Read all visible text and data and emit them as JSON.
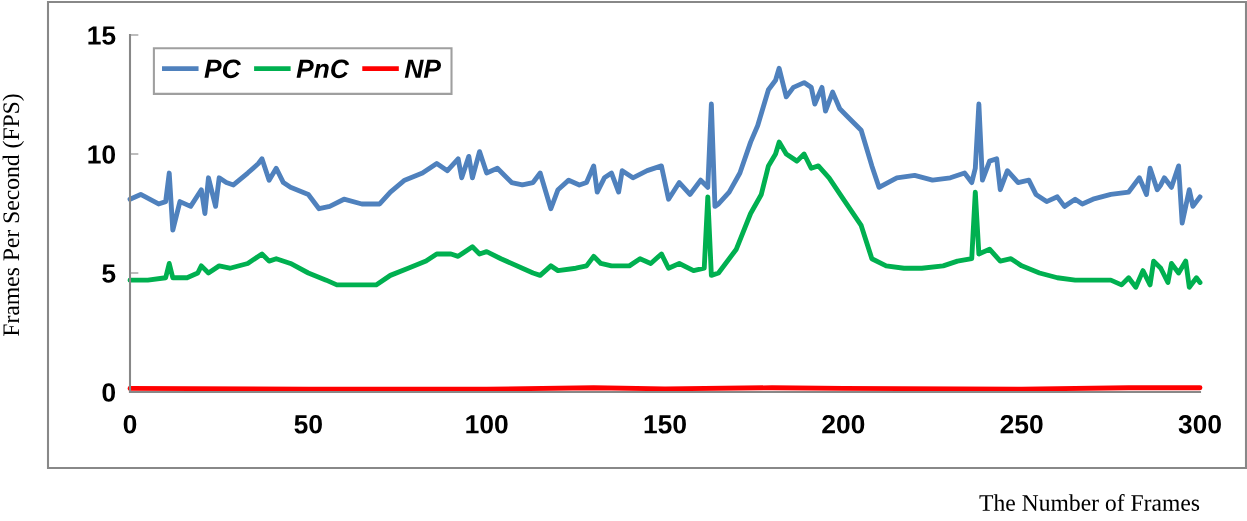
{
  "chart_data": {
    "type": "line",
    "xlabel": "The Number of Frames",
    "ylabel": "Frames Per Second (FPS)",
    "xlim": [
      0,
      300
    ],
    "xticks": [
      0,
      50,
      100,
      150,
      200,
      250,
      300
    ],
    "ylim": [
      0,
      15
    ],
    "yticks": [
      0,
      5,
      10,
      15
    ],
    "grid": false,
    "legend": "top left",
    "marker": "none",
    "line_style": "solid",
    "series": [
      {
        "name": "PC",
        "color": "#4f81bd",
        "x": [
          0,
          3,
          8,
          10,
          11,
          12,
          14,
          17,
          20,
          21,
          22,
          24,
          25,
          27,
          29,
          33,
          36,
          37,
          39,
          41,
          43,
          45,
          50,
          53,
          56,
          60,
          65,
          70,
          73,
          77,
          82,
          86,
          89,
          92,
          93,
          95,
          96,
          98,
          100,
          103,
          107,
          110,
          113,
          115,
          118,
          120,
          123,
          126,
          128,
          130,
          131,
          133,
          135,
          137,
          138,
          141,
          145,
          149,
          151,
          154,
          157,
          160,
          162,
          163,
          164,
          165,
          168,
          171,
          174,
          176,
          179,
          181,
          182,
          184,
          186,
          189,
          191,
          192,
          194,
          195,
          197,
          199,
          201,
          205,
          208,
          210,
          215,
          220,
          225,
          230,
          234,
          236,
          237,
          238,
          239,
          241,
          243,
          244,
          246,
          249,
          252,
          254,
          257,
          260,
          262,
          265,
          267,
          270,
          275,
          280,
          283,
          285,
          286,
          288,
          289,
          290,
          292,
          294,
          295,
          297,
          298,
          300
        ],
        "values": [
          8.1,
          8.3,
          7.9,
          8.0,
          9.2,
          6.8,
          8.0,
          7.8,
          8.5,
          7.5,
          9.0,
          7.8,
          9.0,
          8.8,
          8.7,
          9.2,
          9.6,
          9.8,
          8.9,
          9.4,
          8.8,
          8.6,
          8.3,
          7.7,
          7.8,
          8.1,
          7.9,
          7.9,
          8.4,
          8.9,
          9.2,
          9.6,
          9.3,
          9.8,
          9.0,
          9.9,
          9.0,
          10.1,
          9.2,
          9.4,
          8.8,
          8.7,
          8.8,
          9.2,
          7.7,
          8.5,
          8.9,
          8.7,
          8.8,
          9.5,
          8.4,
          9.0,
          9.2,
          8.4,
          9.3,
          9.0,
          9.3,
          9.5,
          8.1,
          8.8,
          8.3,
          8.9,
          8.6,
          12.1,
          7.8,
          7.9,
          8.4,
          9.2,
          10.5,
          11.2,
          12.7,
          13.1,
          13.6,
          12.4,
          12.8,
          13.0,
          12.8,
          12.1,
          12.8,
          11.8,
          12.6,
          11.9,
          11.6,
          11.0,
          9.5,
          8.6,
          9.0,
          9.1,
          8.9,
          9.0,
          9.2,
          8.8,
          9.4,
          12.1,
          8.9,
          9.7,
          9.8,
          8.5,
          9.3,
          8.8,
          8.9,
          8.3,
          8.0,
          8.2,
          7.8,
          8.1,
          7.9,
          8.1,
          8.3,
          8.4,
          9.0,
          8.3,
          9.4,
          8.5,
          8.7,
          9.0,
          8.6,
          9.5,
          7.1,
          8.5,
          7.8,
          8.2
        ]
      },
      {
        "name": "PnC",
        "color": "#00b050",
        "x": [
          0,
          5,
          10,
          11,
          12,
          16,
          19,
          20,
          22,
          25,
          28,
          33,
          37,
          39,
          41,
          45,
          50,
          55,
          58,
          65,
          69,
          73,
          78,
          83,
          86,
          90,
          92,
          96,
          98,
          100,
          104,
          110,
          113,
          115,
          118,
          120,
          125,
          128,
          130,
          132,
          135,
          140,
          143,
          146,
          149,
          151,
          154,
          158,
          161,
          162,
          163,
          165,
          170,
          174,
          177,
          179,
          181,
          182,
          184,
          187,
          189,
          191,
          193,
          196,
          200,
          205,
          208,
          212,
          217,
          222,
          228,
          232,
          236,
          237,
          238,
          241,
          244,
          247,
          250,
          255,
          260,
          265,
          270,
          275,
          278,
          280,
          282,
          284,
          286,
          287,
          289,
          291,
          292,
          294,
          296,
          297,
          299,
          300
        ],
        "values": [
          4.7,
          4.7,
          4.8,
          5.4,
          4.8,
          4.8,
          5.0,
          5.3,
          5.0,
          5.3,
          5.2,
          5.4,
          5.8,
          5.5,
          5.6,
          5.4,
          5.0,
          4.7,
          4.5,
          4.5,
          4.5,
          4.9,
          5.2,
          5.5,
          5.8,
          5.8,
          5.7,
          6.1,
          5.8,
          5.9,
          5.6,
          5.2,
          5.0,
          4.9,
          5.3,
          5.1,
          5.2,
          5.3,
          5.7,
          5.4,
          5.3,
          5.3,
          5.6,
          5.4,
          5.8,
          5.2,
          5.4,
          5.1,
          5.2,
          8.2,
          4.9,
          5.0,
          6.0,
          7.5,
          8.3,
          9.5,
          10.0,
          10.5,
          10.0,
          9.7,
          10.0,
          9.4,
          9.5,
          9.0,
          8.1,
          7.0,
          5.6,
          5.3,
          5.2,
          5.2,
          5.3,
          5.5,
          5.6,
          8.4,
          5.8,
          6.0,
          5.5,
          5.6,
          5.3,
          5.0,
          4.8,
          4.7,
          4.7,
          4.7,
          4.5,
          4.8,
          4.4,
          5.1,
          4.5,
          5.5,
          5.2,
          4.6,
          5.4,
          5.0,
          5.5,
          4.4,
          4.8,
          4.6
        ]
      },
      {
        "name": "NP",
        "color": "#ff0000",
        "x": [
          0,
          50,
          100,
          130,
          150,
          180,
          200,
          250,
          280,
          300
        ],
        "values": [
          0.15,
          0.12,
          0.12,
          0.18,
          0.13,
          0.18,
          0.15,
          0.12,
          0.18,
          0.18
        ]
      }
    ]
  }
}
